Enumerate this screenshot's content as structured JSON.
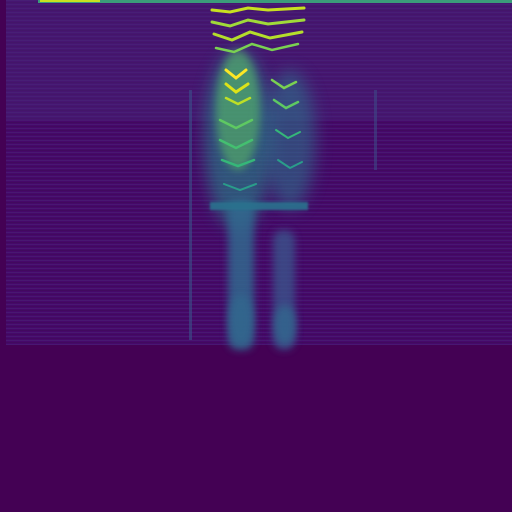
{
  "image": {
    "kind": "spectrogram",
    "colormap": "viridis",
    "colors": {
      "background": "#440154",
      "low": "#471365",
      "mid_low": "#3b528b",
      "mid": "#21918c",
      "mid_high": "#5ec962",
      "high": "#fde725"
    }
  }
}
